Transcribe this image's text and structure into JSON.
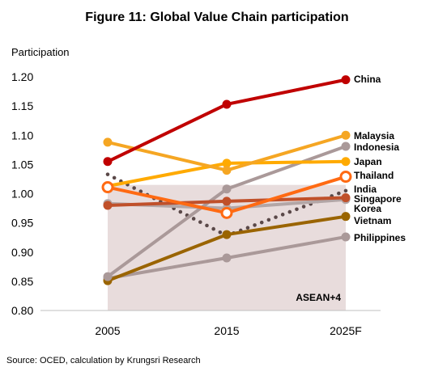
{
  "chart_data": {
    "type": "line",
    "title": "Figure 11: Global Value Chain participation",
    "ylabel": "Participation",
    "xlabel": "",
    "categories": [
      "2005",
      "2015",
      "2025F"
    ],
    "ylim": [
      0.8,
      1.2
    ],
    "yticks": [
      "1.20",
      "1.15",
      "1.10",
      "1.05",
      "1.00",
      "0.95",
      "0.90",
      "0.85",
      "0.80"
    ],
    "yticks_values": [
      1.2,
      1.15,
      1.1,
      1.05,
      1.0,
      0.95,
      0.9,
      0.85,
      0.8
    ],
    "grid": false,
    "shaded_region": {
      "label": "ASEAN+4",
      "y_top": 1.015,
      "color": "#e8dcdc"
    },
    "series": [
      {
        "name": "China",
        "values": [
          1.055,
          1.153,
          1.195
        ],
        "color": "#c00000",
        "style": "solid",
        "marker": "filled"
      },
      {
        "name": "Malaysia",
        "values": [
          1.088,
          1.04,
          1.1
        ],
        "color": "#f5a623",
        "style": "solid",
        "marker": "filled"
      },
      {
        "name": "Indonesia",
        "values": [
          0.858,
          1.008,
          1.081
        ],
        "color": "#aa9999",
        "style": "solid",
        "marker": "filled"
      },
      {
        "name": "Japan",
        "values": [
          1.013,
          1.052,
          1.055
        ],
        "color": "#ffaa00",
        "style": "solid",
        "marker": "filled"
      },
      {
        "name": "Thailand",
        "values": [
          1.011,
          0.967,
          1.029
        ],
        "color": "#ff6a13",
        "style": "solid",
        "marker": "hollow",
        "label_color": "#ff6a13"
      },
      {
        "name": "India",
        "values": [
          1.033,
          0.928,
          1.005
        ],
        "color": "#5a4848",
        "style": "dotted",
        "marker": "none"
      },
      {
        "name": "Singapore",
        "values": [
          0.98,
          0.987,
          0.993
        ],
        "color": "#c0502a",
        "style": "solid",
        "marker": "filled"
      },
      {
        "name": "Korea",
        "values": [
          0.983,
          0.975,
          0.99
        ],
        "color": "#b3a6a6",
        "style": "solid",
        "marker": "filled"
      },
      {
        "name": "Vietnam",
        "values": [
          0.851,
          0.93,
          0.961
        ],
        "color": "#9a6400",
        "style": "solid",
        "marker": "filled"
      },
      {
        "name": "Philippines",
        "values": [
          0.855,
          0.89,
          0.926
        ],
        "color": "#aa9999",
        "style": "solid",
        "marker": "filled"
      }
    ],
    "label_order": [
      "China",
      "Malaysia",
      "Indonesia",
      "Japan",
      "Thailand",
      "India",
      "Singapore",
      "Korea",
      "Vietnam",
      "Philippines"
    ]
  },
  "source": "Source: OCED, calculation by Krungsri Research"
}
